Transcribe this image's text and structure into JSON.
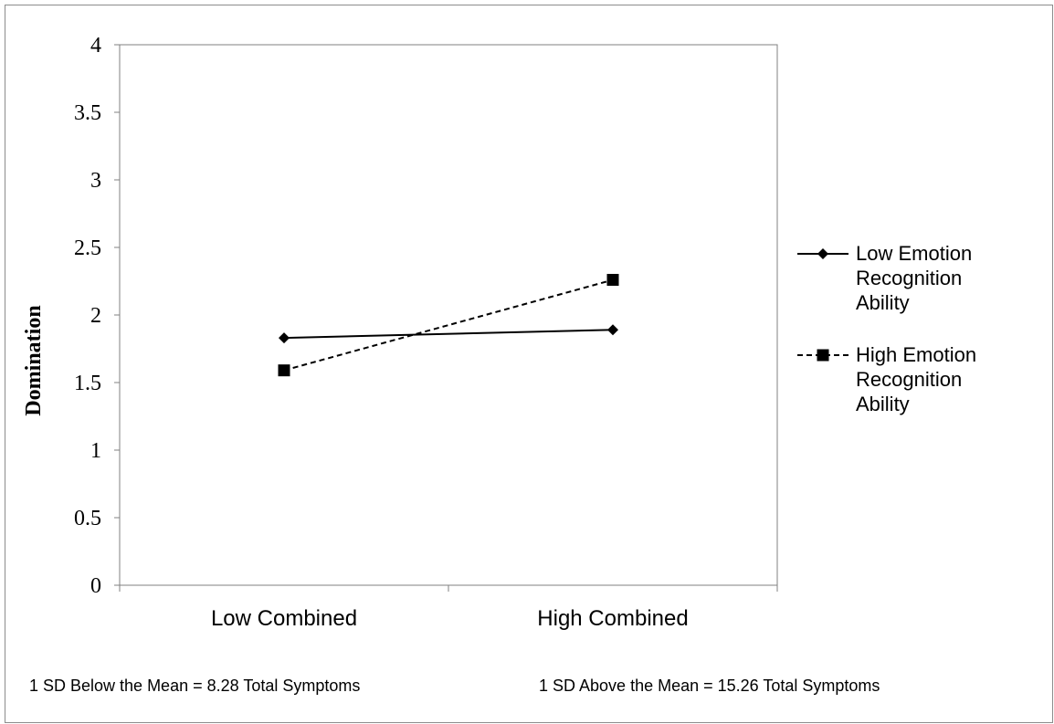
{
  "chart_data": {
    "type": "line",
    "title": "",
    "xlabel": "",
    "ylabel": "Domination",
    "categories": [
      "Low Combined",
      "High Combined"
    ],
    "ylim": [
      0,
      4
    ],
    "yticks": [
      "0",
      "0.5",
      "1",
      "1.5",
      "2",
      "2.5",
      "3",
      "3.5",
      "4"
    ],
    "grid": false,
    "legend_position": "right",
    "series": [
      {
        "name": "Low Emotion Recognition Ability",
        "name_lines": [
          "Low Emotion",
          "Recognition",
          "Ability"
        ],
        "values": [
          1.83,
          1.89
        ],
        "line_style": "solid",
        "marker": "diamond",
        "color": "#000000"
      },
      {
        "name": "High Emotion Recognition Ability",
        "name_lines": [
          "High Emotion",
          "Recognition",
          "Ability"
        ],
        "values": [
          1.59,
          2.26
        ],
        "line_style": "dashed",
        "marker": "square",
        "color": "#000000"
      }
    ],
    "notes": [
      "1 SD Below the Mean = 8.28 Total Symptoms",
      "1 SD Above the Mean = 15.26 Total Symptoms"
    ]
  }
}
